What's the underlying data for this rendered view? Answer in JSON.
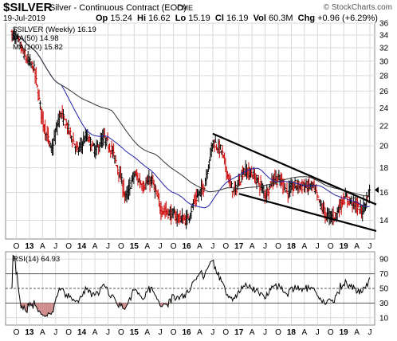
{
  "header": {
    "symbol": "$SILVER",
    "description": "Silver - Continuous Contract (EOD)",
    "exchange": "CME",
    "brand": "© StockCharts.com",
    "date": "19-Jul-2019",
    "quote": {
      "open_label": "Op",
      "open": "15.24",
      "high_label": "Hi",
      "high": "16.62",
      "low_label": "Lo",
      "low": "15.19",
      "close_label": "Cl",
      "close": "16.19",
      "volume_label": "Vol",
      "volume": "60.3M",
      "change_label": "Chg",
      "change": "+0.96 (+6.29%)"
    }
  },
  "legend": {
    "price": "$SILVER (Weekly) 16.19",
    "ma50": "MA(50) 14.98",
    "ma100": "MA(100) 15.82",
    "rsi": "RSI(14) 64.93"
  },
  "colors": {
    "up": "#000000",
    "down": "#cc0000",
    "ma50": "#2222aa",
    "ma100": "#333333",
    "grid": "#d9d9d9",
    "rsi_oversold_fill": "#cc8888"
  },
  "chart_data": [
    {
      "type": "ohlc",
      "frequency": "weekly",
      "x_start": "2012-09",
      "x_end": "2019-07",
      "ylim": [
        12.8,
        36
      ],
      "y_scale": "log",
      "ytick_labels": [
        "14",
        "16",
        "18",
        "20",
        "22",
        "24",
        "26",
        "28",
        "30",
        "32",
        "34",
        "36"
      ],
      "xtick_labels": [
        "O",
        "13",
        "A",
        "J",
        "O",
        "14",
        "A",
        "J",
        "O",
        "15",
        "A",
        "J",
        "O",
        "16",
        "A",
        "J",
        "O",
        "17",
        "A",
        "J",
        "O",
        "18",
        "A",
        "J",
        "O",
        "19",
        "A",
        "J"
      ],
      "close_anchors": [
        {
          "x": "2012-09",
          "y": 34.0
        },
        {
          "x": "2012-10",
          "y": 33.5
        },
        {
          "x": "2012-12",
          "y": 30.5
        },
        {
          "x": "2013-02",
          "y": 29.0
        },
        {
          "x": "2013-04",
          "y": 22.5
        },
        {
          "x": "2013-06",
          "y": 19.5
        },
        {
          "x": "2013-08",
          "y": 23.5
        },
        {
          "x": "2013-10",
          "y": 21.5
        },
        {
          "x": "2013-12",
          "y": 19.5
        },
        {
          "x": "2014-02",
          "y": 21.0
        },
        {
          "x": "2014-04",
          "y": 19.5
        },
        {
          "x": "2014-06",
          "y": 20.8
        },
        {
          "x": "2014-08",
          "y": 19.5
        },
        {
          "x": "2014-10",
          "y": 17.0
        },
        {
          "x": "2014-11",
          "y": 15.5
        },
        {
          "x": "2015-01",
          "y": 17.5
        },
        {
          "x": "2015-03",
          "y": 16.5
        },
        {
          "x": "2015-05",
          "y": 17.0
        },
        {
          "x": "2015-07",
          "y": 14.8
        },
        {
          "x": "2015-09",
          "y": 14.5
        },
        {
          "x": "2015-11",
          "y": 14.2
        },
        {
          "x": "2016-01",
          "y": 14.0
        },
        {
          "x": "2016-03",
          "y": 15.5
        },
        {
          "x": "2016-05",
          "y": 16.5
        },
        {
          "x": "2016-07",
          "y": 20.5
        },
        {
          "x": "2016-09",
          "y": 19.5
        },
        {
          "x": "2016-11",
          "y": 16.5
        },
        {
          "x": "2016-12",
          "y": 16.0
        },
        {
          "x": "2017-02",
          "y": 17.8
        },
        {
          "x": "2017-04",
          "y": 17.5
        },
        {
          "x": "2017-06",
          "y": 16.5
        },
        {
          "x": "2017-07",
          "y": 15.8
        },
        {
          "x": "2017-09",
          "y": 17.2
        },
        {
          "x": "2017-11",
          "y": 16.8
        },
        {
          "x": "2017-12",
          "y": 16.0
        },
        {
          "x": "2018-02",
          "y": 16.6
        },
        {
          "x": "2018-04",
          "y": 16.5
        },
        {
          "x": "2018-06",
          "y": 16.5
        },
        {
          "x": "2018-07",
          "y": 15.5
        },
        {
          "x": "2018-09",
          "y": 14.3
        },
        {
          "x": "2018-11",
          "y": 14.3
        },
        {
          "x": "2019-01",
          "y": 15.6
        },
        {
          "x": "2019-03",
          "y": 15.3
        },
        {
          "x": "2019-05",
          "y": 14.6
        },
        {
          "x": "2019-06",
          "y": 15.3
        },
        {
          "x": "2019-07",
          "y": 16.19
        }
      ],
      "last_bar": {
        "open": 15.24,
        "high": 16.62,
        "low": 15.19,
        "close": 16.19
      },
      "series": [
        {
          "name": "MA(50)",
          "last": 14.98
        },
        {
          "name": "MA(100)",
          "last": 15.82
        }
      ],
      "trendlines": [
        {
          "from": {
            "x": "2016-07",
            "y": 21.2
          },
          "to": {
            "x": "2019-07",
            "y": 15.1
          }
        },
        {
          "from": {
            "x": "2017-01",
            "y": 15.9
          },
          "to": {
            "x": "2019-07",
            "y": 13.3
          }
        }
      ],
      "grid": true
    },
    {
      "type": "line",
      "name": "RSI(14)",
      "last": 64.93,
      "ylim": [
        0,
        100
      ],
      "ytick_labels": [
        "10",
        "30",
        "50",
        "70",
        "90"
      ],
      "reference_lines": [
        30,
        50,
        70
      ],
      "xtick_labels": [
        "O",
        "13",
        "A",
        "J",
        "O",
        "14",
        "A",
        "J",
        "O",
        "15",
        "A",
        "J",
        "O",
        "16",
        "A",
        "J",
        "O",
        "17",
        "A",
        "J",
        "O",
        "18",
        "A",
        "J",
        "O",
        "19",
        "A",
        "J"
      ],
      "grid": true
    }
  ]
}
